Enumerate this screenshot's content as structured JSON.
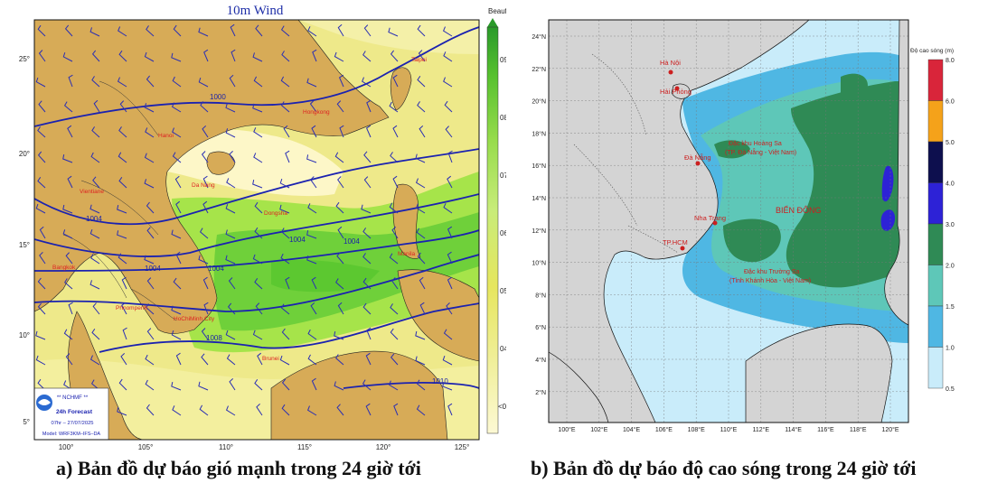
{
  "panel_a": {
    "title": "10m Wind",
    "colorbar_title": "Beaufort",
    "colorbar_labels": [
      "09",
      "08",
      "07",
      "06",
      "05",
      "04",
      "<04"
    ],
    "lat_labels": [
      "25°",
      "20°",
      "15°",
      "10°",
      "5°"
    ],
    "lon_labels": [
      "100°",
      "105°",
      "110°",
      "115°",
      "120°",
      "125°"
    ],
    "isobar_labels": [
      "1000",
      "1004",
      "1004",
      "1004",
      "1004",
      "1004",
      "1008",
      "1010"
    ],
    "cities": [
      "Taipei",
      "Hongkong",
      "Hanoi",
      "Vientiane",
      "Bangkok",
      "Phnompenh",
      "HoChiMinh City",
      "Manila",
      "Dongsha",
      "Da Nang",
      "Brunei"
    ],
    "logo_lines": [
      "** NCHMF **",
      "24h Forecast",
      "07hr – 27/07/2025",
      "Model: WRF3KM–IFS–DA"
    ],
    "colors": {
      "land": "#d7ab57",
      "sea_calm": "#fdf7c8",
      "sea_yellow": "#e9e97a",
      "sea_lightgreen": "#a6e44a",
      "sea_green": "#5cc830",
      "isobar": "#1b22b0"
    }
  },
  "panel_b": {
    "lat_labels": [
      "24°N",
      "22°N",
      "20°N",
      "18°N",
      "16°N",
      "14°N",
      "12°N",
      "10°N",
      "8°N",
      "6°N",
      "4°N",
      "2°N"
    ],
    "lon_labels": [
      "100°E",
      "102°E",
      "104°E",
      "106°E",
      "108°E",
      "110°E",
      "112°E",
      "114°E",
      "116°E",
      "118°E",
      "120°E"
    ],
    "colorbar_title": "Độ cao sóng (m)",
    "colorbar_labels": [
      "8.0",
      "6.0",
      "5.0",
      "4.0",
      "3.0",
      "2.0",
      "1.5",
      "1.0",
      "0.5"
    ],
    "colorbar_colors": [
      "#d9253a",
      "#f5a21a",
      "#0d0f4e",
      "#2d22d6",
      "#2f8a55",
      "#5ec7b8",
      "#4fb7e3",
      "#c9ecfa"
    ],
    "cities": [
      "Hà Nội",
      "Hải Phòng",
      "Đà Nẵng",
      "Nha Trang",
      "TP.HCM"
    ],
    "regions": [
      "Đặc khu Hoàng Sa",
      "(TP. Đà Nẵng - Việt Nam)",
      "BIỂN ĐÔNG",
      "Đặc khu Trường Sa",
      "(Tỉnh Khánh Hòa - Việt Nam)"
    ],
    "colors": {
      "land": "#d4d4d4",
      "sea_low": "#c9ecfa",
      "sea_mid": "#4fb7e3",
      "sea_teal": "#5ec7b8",
      "sea_green": "#2f8a55",
      "sea_blue": "#2d22d6"
    }
  },
  "captions": {
    "a": "a) Bản đồ dự báo gió mạnh trong 24 giờ tới",
    "b": "b) Bản đồ dự báo độ cao sóng trong 24 giờ tới"
  }
}
